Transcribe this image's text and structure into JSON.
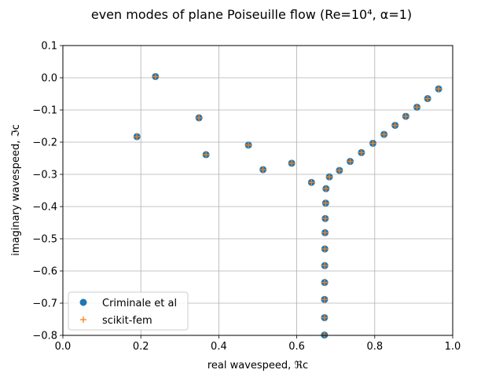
{
  "chart_data": {
    "type": "scatter",
    "title": "even modes of plane Poiseuille flow (Re=10⁴, α=1)",
    "xlabel": "real wavespeed, ℜc",
    "ylabel": "imaginary wavespeed, ℑc",
    "xlim": [
      0.0,
      1.0
    ],
    "ylim": [
      -0.8,
      0.1
    ],
    "xticks": [
      "0.0",
      "0.2",
      "0.4",
      "0.6",
      "0.8",
      "1.0"
    ],
    "yticks": [
      "0.1",
      "0.0",
      "−0.1",
      "−0.2",
      "−0.3",
      "−0.4",
      "−0.5",
      "−0.6",
      "−0.7",
      "−0.8"
    ],
    "grid": true,
    "legend_position": "lower-left",
    "series": [
      {
        "name": "Criminale et al",
        "marker": "circle",
        "color": "#1f77b4",
        "points": [
          [
            0.2375,
            0.0037
          ],
          [
            0.19,
            -0.1828
          ],
          [
            0.3491,
            -0.1245
          ],
          [
            0.3672,
            -0.2388
          ],
          [
            0.476,
            -0.2091
          ],
          [
            0.5134,
            -0.2853
          ],
          [
            0.587,
            -0.2655
          ],
          [
            0.6377,
            -0.325
          ],
          [
            0.6836,
            -0.3077
          ],
          [
            0.7095,
            -0.2877
          ],
          [
            0.737,
            -0.2598
          ],
          [
            0.7659,
            -0.2324
          ],
          [
            0.7953,
            -0.2036
          ],
          [
            0.8238,
            -0.1759
          ],
          [
            0.8522,
            -0.1478
          ],
          [
            0.8797,
            -0.1198
          ],
          [
            0.9083,
            -0.0914
          ],
          [
            0.9357,
            -0.0647
          ],
          [
            0.9639,
            -0.0345
          ],
          [
            0.675,
            -0.3443
          ],
          [
            0.6741,
            -0.3893
          ],
          [
            0.673,
            -0.4372
          ],
          [
            0.6725,
            -0.4812
          ],
          [
            0.672,
            -0.5316
          ],
          [
            0.6717,
            -0.5833
          ],
          [
            0.6715,
            -0.6358
          ],
          [
            0.6712,
            -0.6885
          ],
          [
            0.6711,
            -0.745
          ],
          [
            0.671,
            -0.799
          ]
        ]
      },
      {
        "name": "scikit-fem",
        "marker": "plus",
        "color": "#ff7f0e",
        "points": [
          [
            0.2375,
            0.0037
          ],
          [
            0.19,
            -0.1828
          ],
          [
            0.3491,
            -0.1245
          ],
          [
            0.3672,
            -0.2388
          ],
          [
            0.476,
            -0.2091
          ],
          [
            0.5134,
            -0.2853
          ],
          [
            0.587,
            -0.2655
          ],
          [
            0.6377,
            -0.325
          ],
          [
            0.6836,
            -0.3077
          ],
          [
            0.7095,
            -0.2877
          ],
          [
            0.737,
            -0.2598
          ],
          [
            0.7659,
            -0.2324
          ],
          [
            0.7953,
            -0.2036
          ],
          [
            0.8238,
            -0.1759
          ],
          [
            0.8522,
            -0.1478
          ],
          [
            0.8797,
            -0.1198
          ],
          [
            0.9083,
            -0.0914
          ],
          [
            0.9357,
            -0.0647
          ],
          [
            0.9639,
            -0.0345
          ],
          [
            0.675,
            -0.3443
          ],
          [
            0.6741,
            -0.3893
          ],
          [
            0.673,
            -0.4372
          ],
          [
            0.6725,
            -0.4812
          ],
          [
            0.672,
            -0.5316
          ],
          [
            0.6717,
            -0.5833
          ],
          [
            0.6715,
            -0.6358
          ],
          [
            0.6712,
            -0.6885
          ],
          [
            0.6711,
            -0.745
          ],
          [
            0.671,
            -0.799
          ]
        ]
      }
    ]
  }
}
